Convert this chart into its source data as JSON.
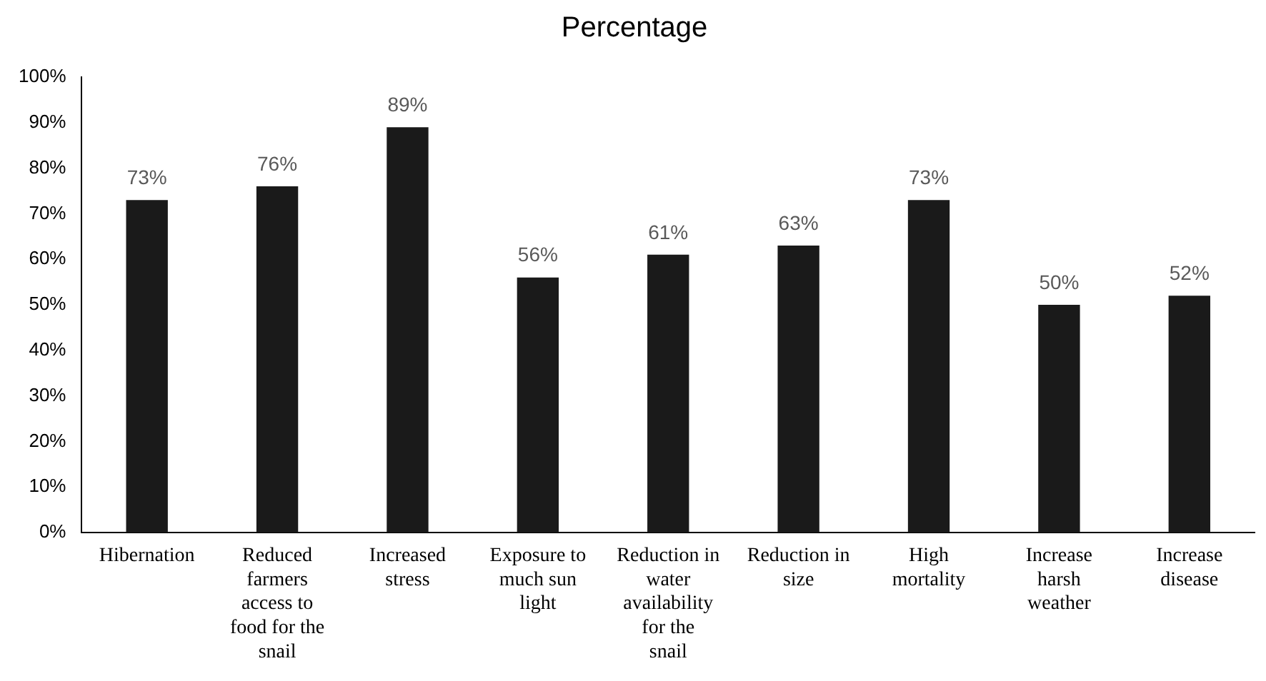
{
  "chart_data": {
    "type": "bar",
    "title": "Percentage",
    "categories": [
      "Hibernation",
      "Reduced farmers access to food for the snail",
      "Increased stress",
      "Exposure to much sun light",
      "Reduction in water availability for the snail",
      "Reduction in size",
      "High mortality",
      "Increase harsh weather",
      "Increase disease"
    ],
    "values": [
      73,
      76,
      89,
      56,
      61,
      63,
      73,
      50,
      52
    ],
    "value_labels": [
      "73%",
      "76%",
      "89%",
      "56%",
      "61%",
      "63%",
      "73%",
      "50%",
      "52%"
    ],
    "color": "#1a1a1a",
    "ylim": [
      0,
      100
    ],
    "yticks": [
      {
        "value": 0,
        "label": "0%"
      },
      {
        "value": 10,
        "label": "10%"
      },
      {
        "value": 20,
        "label": "20%"
      },
      {
        "value": 30,
        "label": "30%"
      },
      {
        "value": 40,
        "label": "40%"
      },
      {
        "value": 50,
        "label": "50%"
      },
      {
        "value": 60,
        "label": "60%"
      },
      {
        "value": 70,
        "label": "70%"
      },
      {
        "value": 80,
        "label": "80%"
      },
      {
        "value": 90,
        "label": "90%"
      },
      {
        "value": 100,
        "label": "100%"
      }
    ],
    "grid": false,
    "legend": false
  }
}
